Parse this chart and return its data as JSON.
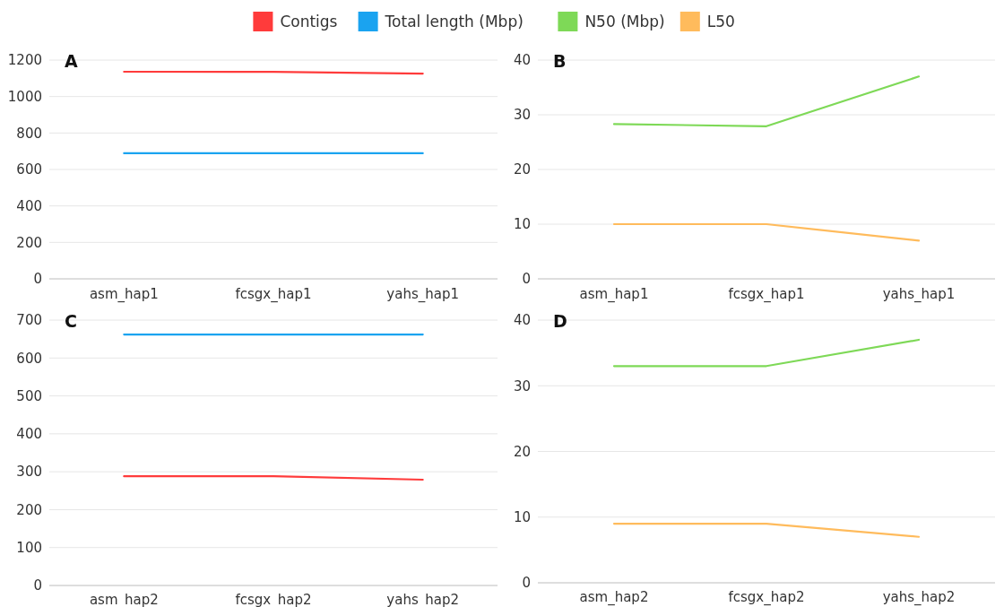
{
  "chart_data": [
    {
      "type": "line",
      "title": "A",
      "categories": [
        "asm_hap1",
        "fcsgx_hap1",
        "yahs_hap1"
      ],
      "ylim": [
        0,
        1200
      ],
      "yticks": [
        0,
        200,
        400,
        600,
        800,
        1000,
        1200
      ],
      "grid": "y",
      "legend": "top",
      "series": [
        {
          "name": "Contigs",
          "color": "#ff3b3b",
          "values": [
            1136,
            1135,
            1126
          ]
        },
        {
          "name": "Total length (Mbp)",
          "color": "#1aa3f0",
          "values": [
            689,
            689,
            689
          ]
        }
      ]
    },
    {
      "type": "line",
      "title": "B",
      "categories": [
        "asm_hap1",
        "fcsgx_hap1",
        "yahs_hap1"
      ],
      "ylim": [
        0,
        40
      ],
      "yticks": [
        0,
        10,
        20,
        30,
        40
      ],
      "grid": "y",
      "legend": "top",
      "series": [
        {
          "name": "N50 (Mbp)",
          "color": "#7ed957",
          "values": [
            28.3,
            27.9,
            37
          ]
        },
        {
          "name": "L50",
          "color": "#ffbb5c",
          "values": [
            10,
            10,
            7
          ]
        }
      ]
    },
    {
      "type": "line",
      "title": "C",
      "categories": [
        "asm_hap2",
        "fcsgx_hap2",
        "yahs_hap2"
      ],
      "ylim": [
        0,
        700
      ],
      "yticks": [
        0,
        100,
        200,
        300,
        400,
        500,
        600,
        700
      ],
      "grid": "y",
      "legend": "top",
      "series": [
        {
          "name": "Contigs",
          "color": "#ff3b3b",
          "values": [
            288,
            288,
            279
          ]
        },
        {
          "name": "Total length (Mbp)",
          "color": "#1aa3f0",
          "values": [
            662,
            662,
            662
          ]
        }
      ]
    },
    {
      "type": "line",
      "title": "D",
      "categories": [
        "asm_hap2",
        "fcsgx_hap2",
        "yahs_hap2"
      ],
      "ylim": [
        0,
        40
      ],
      "yticks": [
        0,
        10,
        20,
        30,
        40
      ],
      "grid": "y",
      "legend": "top",
      "series": [
        {
          "name": "N50 (Mbp)",
          "color": "#7ed957",
          "values": [
            33,
            33,
            37
          ]
        },
        {
          "name": "L50",
          "color": "#ffbb5c",
          "values": [
            9,
            9,
            7
          ]
        }
      ]
    }
  ]
}
